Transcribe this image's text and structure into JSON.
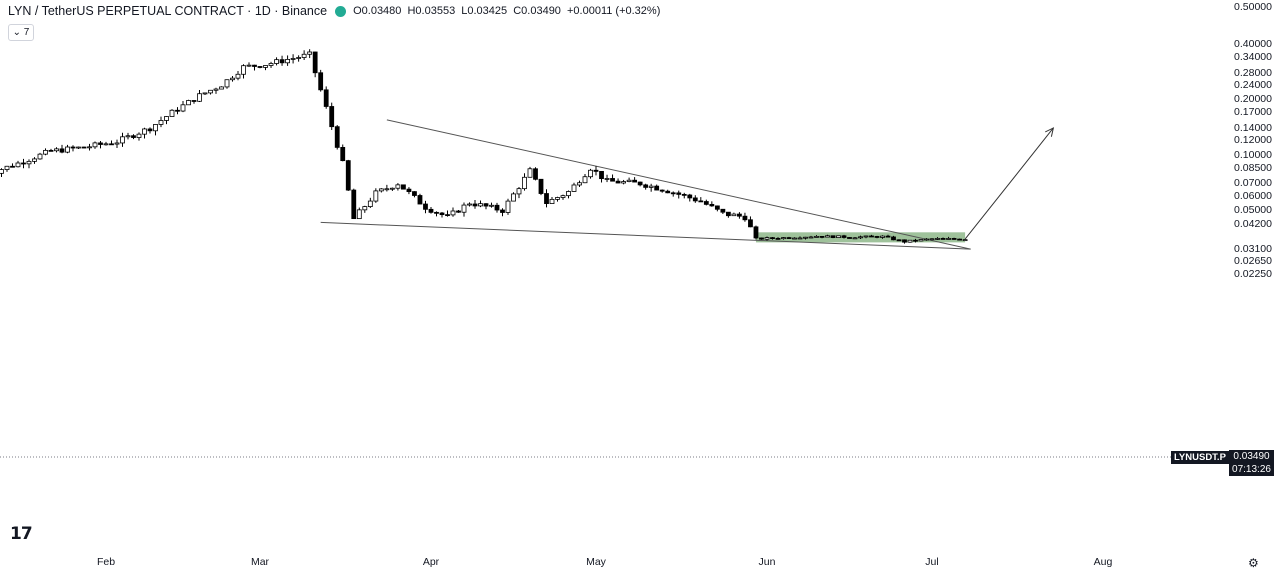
{
  "header": {
    "title": "LYN / TetherUS PERPETUAL CONTRACT · 1D · Binance",
    "open": "O0.03480",
    "high": "H0.03553",
    "low": "L0.03425",
    "close": "C0.03490",
    "change": "+0.00011 (+0.32%)",
    "indicator_toggle": "⌄ 7"
  },
  "symbol_label": "LYNUSDT.P",
  "last_price": "0.03490",
  "countdown": "07:13:26",
  "logo_text": "17",
  "settings_icon": "gear-icon",
  "colors": {
    "up": "#ffffff",
    "down": "#000000",
    "box": "#7fae7a",
    "line": "#555555"
  },
  "chart_data": {
    "type": "candlestick",
    "scale": "log",
    "yticks": [
      "0.50000",
      "0.40000",
      "0.34000",
      "0.28000",
      "0.24000",
      "0.20000",
      "0.17000",
      "0.14000",
      "0.12000",
      "0.10000",
      "0.08500",
      "0.07000",
      "0.06000",
      "0.05000",
      "0.04200",
      "0.03100",
      "0.02650",
      "0.02250"
    ],
    "ytick_values": [
      0.5,
      0.4,
      0.34,
      0.28,
      0.24,
      0.2,
      0.17,
      0.14,
      0.12,
      0.1,
      0.085,
      0.07,
      0.06,
      0.05,
      0.042,
      0.031,
      0.0265,
      0.0225
    ],
    "xticks": [
      "Feb",
      "Mar",
      "Apr",
      "May",
      "Jun",
      "Jul",
      "Aug"
    ],
    "xtick_dates": [
      "2025-02-01",
      "2025-03-01",
      "2025-04-01",
      "2025-05-01",
      "2025-06-01",
      "2025-07-01",
      "2025-08-01"
    ],
    "series": [
      {
        "date": "2025-01-10",
        "value": 0.078
      },
      {
        "date": "2025-01-16",
        "value": 0.09
      },
      {
        "date": "2025-01-22",
        "value": 0.105
      },
      {
        "date": "2025-01-28",
        "value": 0.11
      },
      {
        "date": "2025-02-03",
        "value": 0.118
      },
      {
        "date": "2025-02-09",
        "value": 0.14
      },
      {
        "date": "2025-02-13",
        "value": 0.17
      },
      {
        "date": "2025-02-18",
        "value": 0.21
      },
      {
        "date": "2025-02-22",
        "value": 0.24
      },
      {
        "date": "2025-02-26",
        "value": 0.3
      },
      {
        "date": "2025-03-02",
        "value": 0.31
      },
      {
        "date": "2025-03-06",
        "value": 0.33
      },
      {
        "date": "2025-03-10",
        "value": 0.35
      },
      {
        "date": "2025-03-13",
        "value": 0.18
      },
      {
        "date": "2025-03-16",
        "value": 0.09
      },
      {
        "date": "2025-03-18",
        "value": 0.045
      },
      {
        "date": "2025-03-22",
        "value": 0.062
      },
      {
        "date": "2025-03-26",
        "value": 0.07
      },
      {
        "date": "2025-03-31",
        "value": 0.052
      },
      {
        "date": "2025-04-04",
        "value": 0.046
      },
      {
        "date": "2025-04-08",
        "value": 0.055
      },
      {
        "date": "2025-04-14",
        "value": 0.05
      },
      {
        "date": "2025-04-19",
        "value": 0.082
      },
      {
        "date": "2025-04-22",
        "value": 0.055
      },
      {
        "date": "2025-04-26",
        "value": 0.063
      },
      {
        "date": "2025-04-30",
        "value": 0.085
      },
      {
        "date": "2025-05-03",
        "value": 0.072
      },
      {
        "date": "2025-05-09",
        "value": 0.07
      },
      {
        "date": "2025-05-14",
        "value": 0.064
      },
      {
        "date": "2025-05-20",
        "value": 0.056
      },
      {
        "date": "2025-05-24",
        "value": 0.048
      },
      {
        "date": "2025-05-28",
        "value": 0.046
      },
      {
        "date": "2025-05-30",
        "value": 0.035
      },
      {
        "date": "2025-06-04",
        "value": 0.0355
      },
      {
        "date": "2025-06-10",
        "value": 0.0362
      },
      {
        "date": "2025-06-16",
        "value": 0.0358
      },
      {
        "date": "2025-06-22",
        "value": 0.036
      },
      {
        "date": "2025-06-26",
        "value": 0.0338
      },
      {
        "date": "2025-07-01",
        "value": 0.035
      },
      {
        "date": "2025-07-07",
        "value": 0.0349
      }
    ],
    "projection": {
      "from_date": "2025-07-07",
      "from_value": 0.0349,
      "to_date": "2025-07-23",
      "to_value": 0.14
    },
    "consolidation_box": {
      "from_date": "2025-05-30",
      "to_date": "2025-07-07",
      "low": 0.0335,
      "high": 0.038
    },
    "trendlines": [
      {
        "from_date": "2025-03-24",
        "from_value": 0.155,
        "to_date": "2025-07-08",
        "to_value": 0.0308
      },
      {
        "from_date": "2025-03-12",
        "from_value": 0.043,
        "to_date": "2025-07-08",
        "to_value": 0.0308
      }
    ]
  }
}
